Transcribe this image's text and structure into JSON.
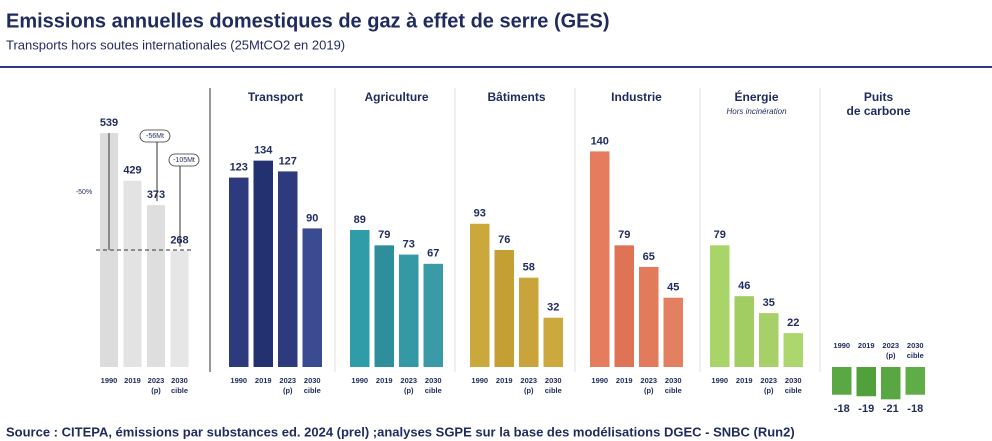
{
  "title": "Emissions annuelles domestiques de gaz à effet de serre (GES)",
  "subtitle": "Transports hors soutes internationales (25MtCO2 en 2019)",
  "source": "Source : CITEPA, émissions par substances ed. 2024 (prel) ;analyses SGPE sur la base des modélisations DGEC - SNBC (Run2)",
  "chart_data": {
    "type": "bar",
    "categories": [
      [
        "1990"
      ],
      [
        "2019"
      ],
      [
        "2023",
        "(p)"
      ],
      [
        "2030",
        "cible"
      ]
    ],
    "annotations": [
      "-50%",
      "-56Mt",
      "-105Mt"
    ],
    "groups": [
      {
        "label": [],
        "values": [
          539,
          429,
          373,
          268
        ],
        "colors": [
          "#dcdcdc",
          "#e3e3e3",
          "#dedede",
          "#e6e6e6"
        ]
      },
      {
        "label": [
          "Transport"
        ],
        "values": [
          123,
          134,
          127,
          90
        ],
        "colors": [
          "#2d3b7e",
          "#243170",
          "#2d3b7e",
          "#3b4b92"
        ]
      },
      {
        "label": [
          "Agriculture"
        ],
        "values": [
          89,
          79,
          73,
          67
        ],
        "colors": [
          "#2f9ca8",
          "#2e8e9c",
          "#3498a5",
          "#3a9aa8"
        ]
      },
      {
        "label": [
          "Bâtiments"
        ],
        "values": [
          93,
          76,
          58,
          32
        ],
        "colors": [
          "#cba83b",
          "#c49f33",
          "#c8a43a",
          "#cca93f"
        ]
      },
      {
        "label": [
          "Industrie"
        ],
        "values": [
          140,
          79,
          65,
          45
        ],
        "colors": [
          "#e57c5e",
          "#de7356",
          "#e27a5c",
          "#e48062"
        ]
      },
      {
        "label": [
          "Énergie"
        ],
        "note": "Hors incinération",
        "values": [
          79,
          46,
          35,
          22
        ],
        "colors": [
          "#a9d46a",
          "#a2cd63",
          "#a7d168",
          "#add66f"
        ]
      },
      {
        "label": [
          "Puits",
          "de carbone"
        ],
        "values": [
          -18,
          -19,
          -21,
          -18
        ],
        "colors": [
          "#5aa843",
          "#52a03c",
          "#59a742",
          "#5fad47"
        ]
      }
    ]
  }
}
